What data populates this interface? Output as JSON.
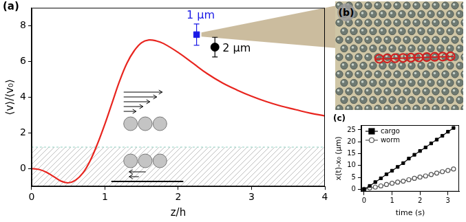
{
  "chart_data": [
    {
      "label": "(a)",
      "type": "line",
      "x_label": "z/h",
      "y_label": "⟨v⟩/⟨v₀⟩",
      "xlim": [
        0,
        4
      ],
      "xticks": [
        0,
        1,
        2,
        3,
        4
      ],
      "ylim": [
        -1,
        9
      ],
      "yticks": [
        0,
        2,
        4,
        6,
        8
      ],
      "grid": false,
      "hatched_band_y": [
        -1,
        1.2
      ],
      "series": [
        {
          "type": "line",
          "color": "#e8251f",
          "marker": "none",
          "line_style": "solid",
          "x": [
            0,
            0.1,
            0.2,
            0.3,
            0.4,
            0.5,
            0.6,
            0.7,
            0.8,
            0.9,
            1.0,
            1.1,
            1.2,
            1.3,
            1.4,
            1.5,
            1.6,
            1.7,
            1.8,
            2.0,
            2.2,
            2.4,
            2.6,
            2.8,
            3.0,
            3.2,
            3.4,
            3.6,
            3.8,
            4.0
          ],
          "values": [
            0,
            -0.05,
            -0.2,
            -0.45,
            -0.7,
            -0.8,
            -0.65,
            -0.25,
            0.45,
            1.4,
            2.5,
            3.7,
            4.9,
            5.9,
            6.6,
            7.05,
            7.2,
            7.15,
            7.0,
            6.5,
            5.9,
            5.3,
            4.8,
            4.4,
            4.05,
            3.75,
            3.5,
            3.3,
            3.1,
            2.95
          ]
        },
        {
          "type": "scatter",
          "name": "1 μm",
          "color": "#1a1ae6",
          "marker": "square",
          "x": [
            2.25
          ],
          "values": [
            7.5
          ],
          "error": [
            0.6
          ]
        },
        {
          "type": "scatter",
          "name": "2 μm",
          "color": "#000000",
          "marker": "circle",
          "x": [
            2.5
          ],
          "values": [
            6.8
          ],
          "error": [
            0.55
          ]
        }
      ]
    },
    {
      "label": "(c)",
      "type": "scatter",
      "x_label": "time (s)",
      "y_label": "x(t)-x₀ (μm)",
      "xlim": [
        -0.1,
        3.4
      ],
      "xticks": [
        0,
        1,
        2,
        3
      ],
      "ylim": [
        -1,
        27
      ],
      "yticks": [
        0,
        5,
        10,
        15,
        20,
        25
      ],
      "grid": false,
      "legend": "upper left",
      "series": [
        {
          "name": "cargo",
          "color": "#000000",
          "marker": "square",
          "line_style": "solid",
          "x": [
            0,
            0.2,
            0.4,
            0.6,
            0.8,
            1.0,
            1.2,
            1.4,
            1.6,
            1.8,
            2.0,
            2.2,
            2.4,
            2.6,
            2.8,
            3.0,
            3.2
          ],
          "values": [
            0,
            1.4,
            3.0,
            4.6,
            6.3,
            7.8,
            9.4,
            11.0,
            12.9,
            14.5,
            16.1,
            17.6,
            19.3,
            20.9,
            22.5,
            24.2,
            25.8
          ]
        },
        {
          "name": "worm",
          "color": "#555555",
          "marker": "open circle",
          "line_style": "solid",
          "x": [
            0,
            0.2,
            0.4,
            0.6,
            0.8,
            1.0,
            1.2,
            1.4,
            1.6,
            1.8,
            2.0,
            2.2,
            2.4,
            2.6,
            2.8,
            3.0,
            3.2
          ],
          "values": [
            0,
            0.5,
            0.9,
            1.4,
            2.0,
            2.5,
            3.0,
            3.4,
            4.0,
            4.6,
            5.1,
            5.6,
            6.2,
            6.8,
            7.4,
            7.9,
            8.5
          ]
        }
      ]
    }
  ],
  "image_panel": {
    "label": "(b)"
  }
}
